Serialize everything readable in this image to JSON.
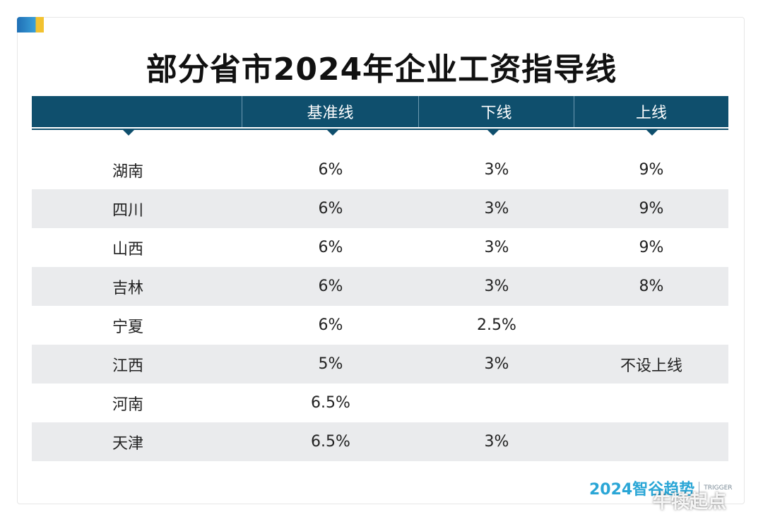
{
  "title": "部分省市2024年企业工资指导线",
  "table": {
    "headers": [
      "",
      "基准线",
      "下线",
      "上线"
    ],
    "rows": [
      [
        "湖南",
        "6%",
        "3%",
        "9%"
      ],
      [
        "四川",
        "6%",
        "3%",
        "9%"
      ],
      [
        "山西",
        "6%",
        "3%",
        "9%"
      ],
      [
        "吉林",
        "6%",
        "3%",
        "8%"
      ],
      [
        "宁夏",
        "6%",
        "2.5%",
        ""
      ],
      [
        "江西",
        "5%",
        "3%",
        "不设上线"
      ],
      [
        "河南",
        "6.5%",
        "",
        ""
      ],
      [
        "天津",
        "6.5%",
        "3%",
        ""
      ]
    ]
  },
  "brand": {
    "main": "2024智谷趋势",
    "sub": "TRIGGER"
  },
  "watermark": "牛犊起点",
  "colors": {
    "header_bg": "#0f4f6d",
    "alt_row": "#eaebed",
    "brand": "#2aa6d6"
  }
}
